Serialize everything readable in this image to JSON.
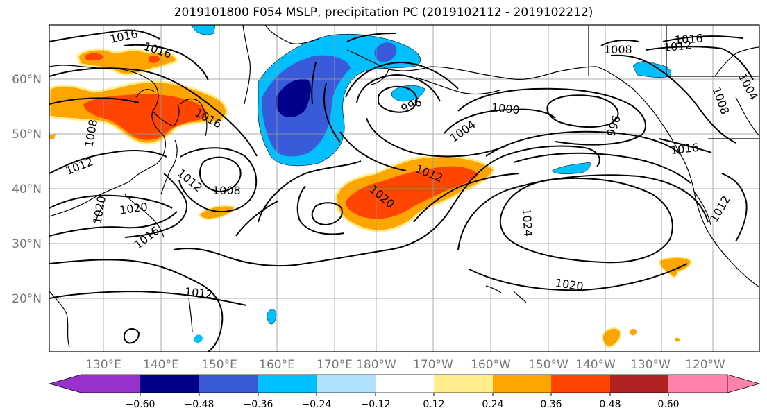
{
  "title": "2019101800 F054 MSLP, precipitation PC (2019102112 - 2019102212)",
  "lat_labels": [
    "60°N",
    "50°N",
    "40°N",
    "30°N",
    "20°N"
  ],
  "lon_labels": [
    "130°E",
    "140°E",
    "150°E",
    "160°E",
    "170°E",
    "180°W",
    "170°W",
    "160°W",
    "150°W",
    "140°W",
    "130°W",
    "120°W"
  ],
  "contour_labels": [
    "1016",
    "1016",
    "1016",
    "1008",
    "1012",
    "1012",
    "1008",
    "1020",
    "1020",
    "1016",
    "1012",
    "1020",
    "996",
    "1000",
    "1004",
    "996",
    "1008",
    "1016",
    "1012",
    "1008",
    "1004",
    "1016",
    "1024",
    "1020",
    "1012",
    "1012"
  ],
  "colorbar": {
    "colors": [
      "#9932cc",
      "#00008b",
      "#3a5bd9",
      "#00bfff",
      "#b0e2ff",
      "#ffffff",
      "#ffec8b",
      "#ffa500",
      "#ff4500",
      "#b22222",
      "#ff82ab"
    ],
    "tick_labels": [
      "−0.60",
      "−0.48",
      "−0.36",
      "−0.24",
      "−0.12",
      "0.12",
      "0.24",
      "0.36",
      "0.48",
      "0.60"
    ]
  }
}
